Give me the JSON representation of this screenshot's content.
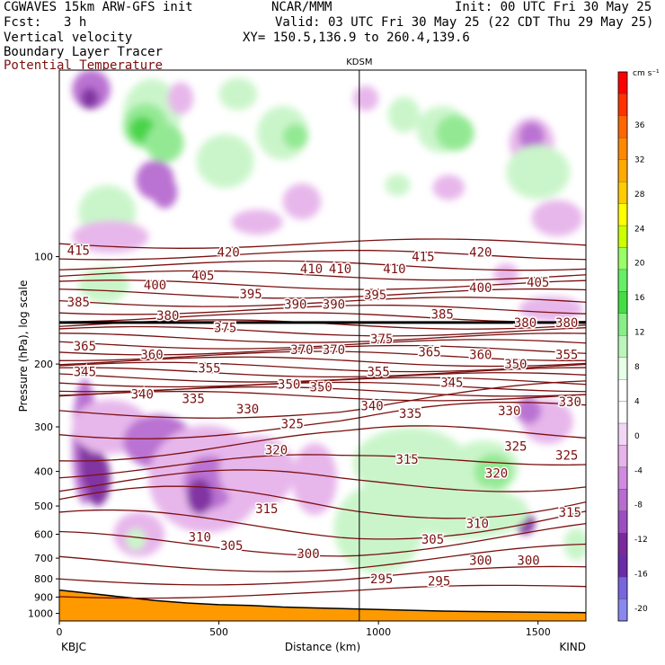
{
  "header": {
    "model": "CGWAVES 15km ARW-GFS init",
    "center": "NCAR/MMM",
    "init": "Init: 00 UTC Fri 30 May 25",
    "fcst_label": "Fcst:",
    "fcst_value": "3 h",
    "valid": "Valid: 03 UTC Fri 30 May 25 (22 CDT Thu 29 May 25)",
    "field1": "Vertical velocity",
    "xy": "XY= 150.5,136.9 to 260.4,139.6",
    "field2": "Boundary Layer Tracer",
    "field3": "Potential Temperature"
  },
  "colors": {
    "theta": "#7a1010",
    "terrain": "#ff9900",
    "strong_down": "#7b2a9e",
    "mod_down": "#b76cd0",
    "weak_down": "#e6b3ea",
    "weak_up": "#c8f5c8",
    "mod_up": "#8ee88e",
    "strong_up": "#3fd23f"
  },
  "chart_data": {
    "type": "heatmap",
    "title": "",
    "xlabel": "Distance (km)",
    "ylabel": "Pressure (hPa), log scale",
    "xlim": [
      0,
      1650
    ],
    "ylim": [
      1050,
      30
    ],
    "y_scale": "log",
    "x_ticks": [
      0,
      500,
      1000,
      1500
    ],
    "y_ticks": [
      100,
      200,
      300,
      400,
      500,
      600,
      700,
      800,
      900,
      1000
    ],
    "station_left": "KBJC",
    "station_right": "KIND",
    "station_mid": "KDSM",
    "station_mid_x": 940,
    "colorbar_unit": "cm s⁻¹",
    "colorbar_labels": [
      "36",
      "32",
      "28",
      "24",
      "20",
      "16",
      "12",
      "8",
      "4",
      "0",
      "-4",
      "-8",
      "-12",
      "-16",
      "-20"
    ],
    "colorbar_colors": [
      "#ff0000",
      "#ff3300",
      "#ff6600",
      "#ff8800",
      "#ffaa00",
      "#ffcc00",
      "#ffff00",
      "#ccff00",
      "#99ff66",
      "#66ee66",
      "#44dd44",
      "#88ee88",
      "#bbf5bb",
      "#e6ffe6",
      "#ffffff",
      "#ffffff",
      "#f3d6f5",
      "#e6b3ea",
      "#d08ae0",
      "#b76cd0",
      "#9b4ec0",
      "#7b2a9e",
      "#6a2ca8",
      "#7766dd",
      "#8888ee"
    ],
    "contour_labels": [
      {
        "text": "415",
        "x": 60,
        "p": 96
      },
      {
        "text": "420",
        "x": 530,
        "p": 97
      },
      {
        "text": "410",
        "x": 790,
        "p": 108
      },
      {
        "text": "410",
        "x": 880,
        "p": 108
      },
      {
        "text": "405",
        "x": 450,
        "p": 113
      },
      {
        "text": "400",
        "x": 300,
        "p": 120
      },
      {
        "text": "395",
        "x": 600,
        "p": 127
      },
      {
        "text": "390",
        "x": 740,
        "p": 136
      },
      {
        "text": "390",
        "x": 860,
        "p": 136
      },
      {
        "text": "385",
        "x": 60,
        "p": 134
      },
      {
        "text": "380",
        "x": 340,
        "p": 146
      },
      {
        "text": "375",
        "x": 520,
        "p": 158
      },
      {
        "text": "370",
        "x": 760,
        "p": 182
      },
      {
        "text": "370",
        "x": 860,
        "p": 182
      },
      {
        "text": "365",
        "x": 80,
        "p": 178
      },
      {
        "text": "360",
        "x": 290,
        "p": 188
      },
      {
        "text": "355",
        "x": 470,
        "p": 205
      },
      {
        "text": "350",
        "x": 720,
        "p": 228
      },
      {
        "text": "350",
        "x": 820,
        "p": 232
      },
      {
        "text": "345",
        "x": 80,
        "p": 210
      },
      {
        "text": "340",
        "x": 260,
        "p": 243
      },
      {
        "text": "335",
        "x": 420,
        "p": 250
      },
      {
        "text": "330",
        "x": 590,
        "p": 267
      },
      {
        "text": "325",
        "x": 730,
        "p": 294
      },
      {
        "text": "320",
        "x": 680,
        "p": 348
      },
      {
        "text": "315",
        "x": 650,
        "p": 508
      },
      {
        "text": "310",
        "x": 440,
        "p": 610
      },
      {
        "text": "305",
        "x": 540,
        "p": 646
      },
      {
        "text": "300",
        "x": 780,
        "p": 680
      },
      {
        "text": "295",
        "x": 1010,
        "p": 800
      },
      {
        "text": "295",
        "x": 1190,
        "p": 810
      },
      {
        "text": "415",
        "x": 1140,
        "p": 100
      },
      {
        "text": "420",
        "x": 1320,
        "p": 97
      },
      {
        "text": "410",
        "x": 1050,
        "p": 108
      },
      {
        "text": "405",
        "x": 1500,
        "p": 118
      },
      {
        "text": "400",
        "x": 1320,
        "p": 122
      },
      {
        "text": "395",
        "x": 990,
        "p": 128
      },
      {
        "text": "385",
        "x": 1200,
        "p": 145
      },
      {
        "text": "380",
        "x": 1460,
        "p": 153
      },
      {
        "text": "380",
        "x": 1590,
        "p": 153
      },
      {
        "text": "375",
        "x": 1010,
        "p": 170
      },
      {
        "text": "365",
        "x": 1160,
        "p": 185
      },
      {
        "text": "360",
        "x": 1320,
        "p": 188
      },
      {
        "text": "355",
        "x": 1590,
        "p": 188
      },
      {
        "text": "355",
        "x": 1000,
        "p": 210
      },
      {
        "text": "350",
        "x": 1430,
        "p": 200
      },
      {
        "text": "345",
        "x": 1230,
        "p": 225
      },
      {
        "text": "340",
        "x": 980,
        "p": 262
      },
      {
        "text": "335",
        "x": 1100,
        "p": 275
      },
      {
        "text": "330",
        "x": 1410,
        "p": 270
      },
      {
        "text": "330",
        "x": 1600,
        "p": 255
      },
      {
        "text": "325",
        "x": 1430,
        "p": 340
      },
      {
        "text": "325",
        "x": 1590,
        "p": 360
      },
      {
        "text": "320",
        "x": 1370,
        "p": 405
      },
      {
        "text": "315",
        "x": 1090,
        "p": 370
      },
      {
        "text": "315",
        "x": 1600,
        "p": 520
      },
      {
        "text": "310",
        "x": 1310,
        "p": 560
      },
      {
        "text": "305",
        "x": 1170,
        "p": 620
      },
      {
        "text": "300",
        "x": 1320,
        "p": 710
      },
      {
        "text": "300",
        "x": 1470,
        "p": 710
      }
    ]
  }
}
